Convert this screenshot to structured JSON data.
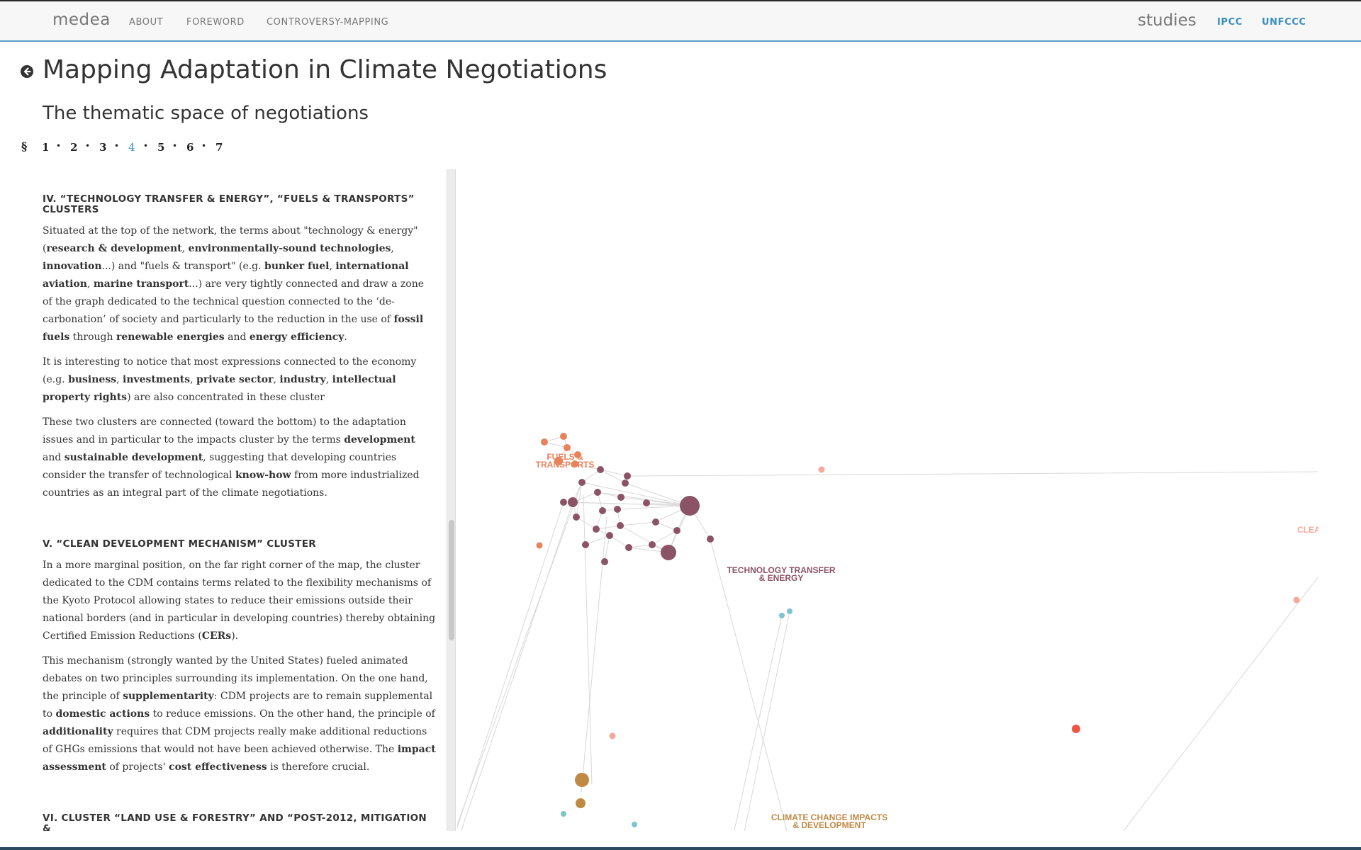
{
  "nav": {
    "brand": "medea",
    "links": [
      "ABOUT",
      "FOREWORD",
      "CONTROVERSY-MAPPING"
    ],
    "studies_label": "studies",
    "study_links": [
      "IPCC",
      "UNFCCC"
    ]
  },
  "header": {
    "title": "Mapping Adaptation in Climate Negotiations",
    "subtitle": "The thematic space of negotiations"
  },
  "pager": {
    "section_symbol": "§",
    "pages": [
      "1",
      "2",
      "3",
      "4",
      "5",
      "6",
      "7"
    ],
    "current": "4",
    "separator": "•"
  },
  "sections": [
    {
      "heading": "IV. “TECHNOLOGY TRANSFER & ENERGY”, “FUELS & TRANSPORTS” CLUSTERS",
      "paragraphs": [
        "Situated at the top of the network, the terms about \"technology & energy\" (<b>research & development</b>, <b>environmentally-sound technologies</b>, <b>innovation</b>...) and \"fuels & transport\" (e.g. <b>bunker fuel</b>, <b>international aviation</b>, <b>marine transport</b>...) are very tightly connected and draw a zone of the graph dedicated to the technical question connected to the ‘de-carbonation’ of society and particularly to the reduction in the use of <b>fossil fuels</b> through <b>renewable energies</b> and <b>energy efficiency</b>.",
        "It is interesting to notice that most expressions connected to the economy (e.g. <b>business</b>, <b>investments</b>, <b>private sector</b>, <b>industry</b>, <b>intellectual property rights</b>) are also concentrated in these cluster",
        "These two clusters are connected (toward the bottom) to the adaptation issues and in particular to the impacts cluster by the terms <b>development</b> and <b>sustainable development</b>, suggesting that developing countries consider the transfer of technological <b>know-how</b> from more industrialized countries as an integral part of the climate negotiations."
      ]
    },
    {
      "heading": "V. “CLEAN DEVELOPMENT MECHANISM” CLUSTER",
      "paragraphs": [
        "In a more marginal position, on the far right corner of the map, the cluster dedicated to the CDM contains terms related to the flexibility mechanisms of the Kyoto Protocol allowing states to reduce their emissions outside their national borders (and in particular in developing countries) thereby obtaining Certified Emission Reductions (<b>CERs</b>).",
        "This mechanism (strongly wanted by the United States) fueled animated debates on two principles surrounding its implementation. On the one hand, the principle of <b>supplementarity</b>: CDM projects are to remain supplemental to <b>domestic actions</b> to reduce emissions. On the other hand, the principle of <b>additionality</b> requires that CDM projects really make additional reductions of GHGs emissions that would not have been achieved otherwise. The <b>impact assessment</b> of projects' <b>cost effectiveness</b> is therefore crucial."
      ]
    },
    {
      "heading": "VI. CLUSTER “LAND USE & FORESTRY” AND “POST-2012, MITIGATION &",
      "paragraphs": []
    }
  ],
  "graph": {
    "colors": {
      "tech": "#8b5366",
      "fuels": "#e8825a",
      "impacts": "#c08a45",
      "cdm": "#f5a898",
      "red": "#f05545",
      "teal": "#7ec3cf",
      "edge": "#d8d8d8"
    },
    "cluster_labels": [
      {
        "lines": [
          "FUELS &",
          "TRANSPORTS"
        ],
        "color": "fuels"
      },
      {
        "lines": [
          "TECHNOLOGY TRANSFER",
          "& ENERGY"
        ],
        "color": "tech"
      },
      {
        "lines": [
          "CLIMATE CHANGE IMPACTS",
          "& DEVELOPMENT"
        ],
        "color": "impacts"
      },
      {
        "lines": [
          "CLEA"
        ],
        "color": "cdm"
      }
    ]
  }
}
